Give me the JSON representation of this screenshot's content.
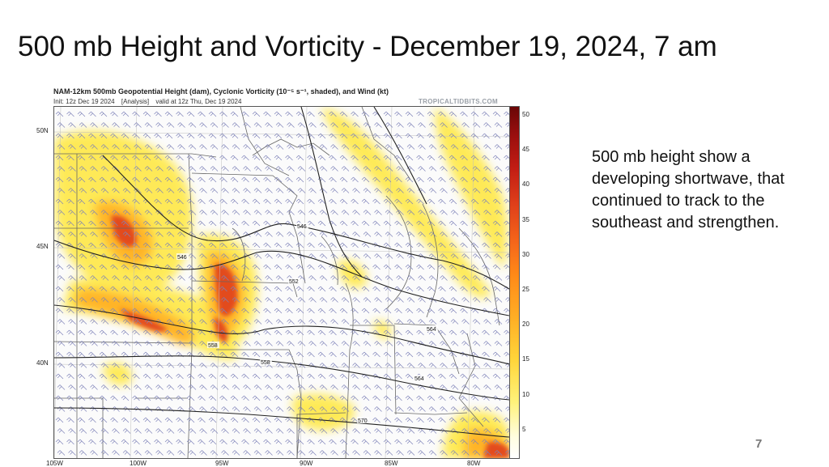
{
  "slide": {
    "title": "500 mb Height and Vorticity - December 19, 2024, 7 am",
    "description": "500 mb height show a developing shortwave, that continued to track to the southeast and strengthen.",
    "page_number": "7"
  },
  "map": {
    "header_line1": "NAM-12km 500mb Geopotential Height (dam), Cyclonic Vorticity (10⁻⁵ s⁻¹, shaded), and Wind (kt)",
    "init": "Init: 12z Dec 19 2024",
    "analysis": "[Analysis]",
    "valid": "valid at 12z Thu, Dec 19 2024",
    "watermark": "TROPICALTIDBITS.COM",
    "latitude_labels": [
      "50N",
      "45N",
      "40N"
    ],
    "longitude_labels": [
      "105W",
      "100W",
      "95W",
      "90W",
      "85W",
      "80W"
    ],
    "height_contour_labels": [
      "546",
      "546",
      "552",
      "558",
      "558",
      "564",
      "564",
      "570"
    ],
    "colorbar": {
      "units": "10⁻⁵ s⁻¹",
      "ticks": [
        "50",
        "45",
        "40",
        "35",
        "30",
        "25",
        "20",
        "15",
        "10",
        "5"
      ]
    },
    "colors": {
      "low": "#fff27a",
      "mid": "#ffae24",
      "high": "#e0401a",
      "max": "#8a0a0a",
      "contour": "#222222",
      "border": "#666666",
      "barb": "#7d82b8"
    }
  }
}
